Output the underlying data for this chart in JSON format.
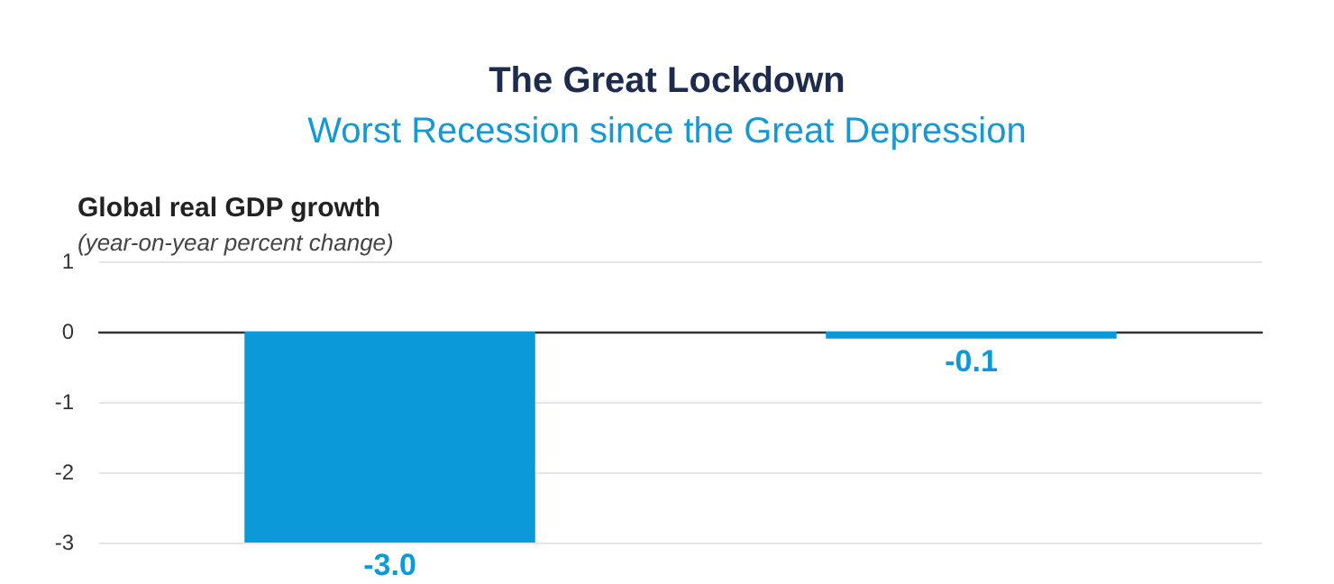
{
  "chart_data": {
    "type": "bar",
    "title": "The Great Lockdown",
    "subtitle": "Worst Recession since the Great Depression",
    "ylabel": "Global real GDP growth",
    "annotations": [
      "(year-on-year percent change)"
    ],
    "categories": [
      null,
      null
    ],
    "values": [
      -3.0,
      -0.1
    ],
    "value_labels": [
      "-3.0",
      "-0.1"
    ],
    "color": "#0a9ad9",
    "ylim": [
      -3,
      1
    ],
    "yticks": [
      -3,
      -2,
      -1,
      0,
      1
    ],
    "grid": "y"
  }
}
